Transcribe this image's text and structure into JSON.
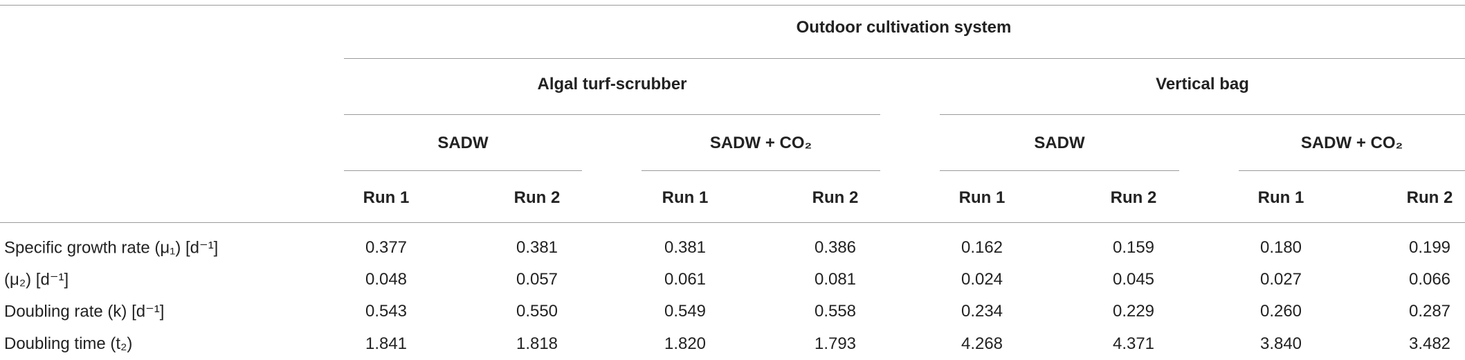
{
  "header": {
    "title": "Outdoor cultivation system",
    "systems": [
      {
        "name": "Algal turf-scrubber",
        "media": [
          {
            "name": "SADW",
            "runs": [
              "Run 1",
              "Run 2"
            ]
          },
          {
            "name": "SADW + CO₂",
            "runs": [
              "Run 1",
              "Run 2"
            ]
          }
        ]
      },
      {
        "name": "Vertical bag",
        "media": [
          {
            "name": "SADW",
            "runs": [
              "Run 1",
              "Run 2"
            ]
          },
          {
            "name": "SADW + CO₂",
            "runs": [
              "Run 1",
              "Run 2"
            ]
          }
        ]
      }
    ]
  },
  "table": {
    "rows": [
      {
        "label": "Specific growth rate (μ₁) [d⁻¹]",
        "values": [
          "0.377",
          "0.381",
          "0.381",
          "0.386",
          "0.162",
          "0.159",
          "0.180",
          "0.199"
        ]
      },
      {
        "label": "(μ₂) [d⁻¹]",
        "values": [
          "0.048",
          "0.057",
          "0.061",
          "0.081",
          "0.024",
          "0.045",
          "0.027",
          "0.066"
        ]
      },
      {
        "label": "Doubling rate (k) [d⁻¹]",
        "values": [
          "0.543",
          "0.550",
          "0.549",
          "0.558",
          "0.234",
          "0.229",
          "0.260",
          "0.287"
        ]
      },
      {
        "label": "Doubling time (t₂)",
        "values": [
          "1.841",
          "1.818",
          "1.820",
          "1.793",
          "4.268",
          "4.371",
          "3.840",
          "3.482"
        ]
      }
    ]
  }
}
